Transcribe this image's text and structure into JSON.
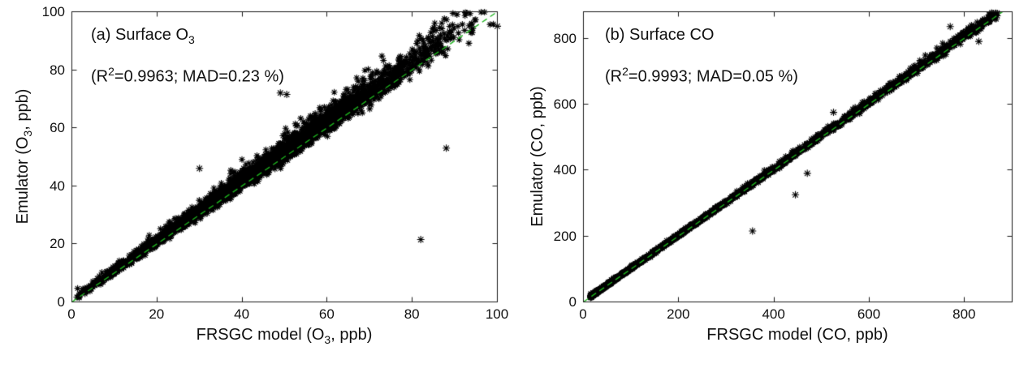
{
  "page": {
    "background": "#ffffff"
  },
  "chart_data": [
    {
      "type": "scatter",
      "panel_label": {
        "pre": "(a) Surface O",
        "sub": "3",
        "post": ""
      },
      "stats_label": {
        "pre": "(R",
        "sup": "2",
        "post": "=0.9963; MAD=0.23 %)"
      },
      "xlabel": {
        "pre": "FRSGC model (O",
        "sub": "3",
        "post": ", ppb)"
      },
      "ylabel": {
        "pre": "Emulator (O",
        "sub": "3",
        "post": ", ppb)"
      },
      "xlim": [
        0,
        100
      ],
      "ylim": [
        0,
        100
      ],
      "xticks": [
        0,
        20,
        40,
        60,
        80,
        100
      ],
      "yticks": [
        0,
        20,
        40,
        60,
        80,
        100
      ],
      "grid": false,
      "legend": null,
      "identity_line": {
        "style": "dashed",
        "color": "#1db31d",
        "from": [
          0,
          0
        ],
        "to": [
          100,
          100
        ]
      },
      "marker": {
        "shape": "asterisk",
        "color": "#000000",
        "size": 4
      },
      "point_cloud": {
        "n": 3200,
        "seed": 42,
        "x_dist": "gaussian",
        "x_mean": 45,
        "x_sd": 22,
        "x_min": 1,
        "x_max": 100,
        "rel_sym": 0.02,
        "rel_upper": 0.05,
        "abs_sym": 0.4,
        "abs_upper": 1.3,
        "description": "dense cloud of asterisk markers hugging the 1:1 line, slightly biased above it"
      },
      "outliers": [
        [
          49,
          72
        ],
        [
          50.5,
          71.5
        ],
        [
          30,
          46
        ],
        [
          82,
          21.5
        ],
        [
          88,
          53
        ],
        [
          100,
          95
        ]
      ]
    },
    {
      "type": "scatter",
      "panel_label": {
        "pre": "(b) Surface CO",
        "sub": "",
        "post": ""
      },
      "stats_label": {
        "pre": "(R",
        "sup": "2",
        "post": "=0.9993; MAD=0.05 %)"
      },
      "xlabel": {
        "pre": "FRSGC model (CO, ppb)",
        "sub": "",
        "post": ""
      },
      "ylabel": {
        "pre": "Emulator (CO, ppb)",
        "sub": "",
        "post": ""
      },
      "xlim": [
        0,
        900
      ],
      "ylim": [
        0,
        880
      ],
      "xticks": [
        0,
        200,
        400,
        600,
        800
      ],
      "yticks": [
        0,
        200,
        400,
        600,
        800
      ],
      "grid": false,
      "legend": null,
      "identity_line": {
        "style": "dashed",
        "color": "#1db31d",
        "from": [
          0,
          0
        ],
        "to": [
          880,
          880
        ]
      },
      "marker": {
        "shape": "asterisk",
        "color": "#000000",
        "size": 4
      },
      "point_cloud": {
        "n": 2600,
        "seed": 7,
        "x_dist": "power",
        "x_pow": 1.9,
        "x_min": 15,
        "x_max": 870,
        "rel_sym": 0.006,
        "rel_upper": 0.012,
        "abs_sym": 1.5,
        "abs_upper": 3.5,
        "description": "very tight cloud of asterisk markers along the 1:1 line, densest below 300 ppb"
      },
      "outliers": [
        [
          355,
          215
        ],
        [
          445,
          325
        ],
        [
          470,
          390
        ],
        [
          525,
          575
        ],
        [
          770,
          835
        ],
        [
          830,
          790
        ],
        [
          860,
          875
        ]
      ]
    }
  ]
}
